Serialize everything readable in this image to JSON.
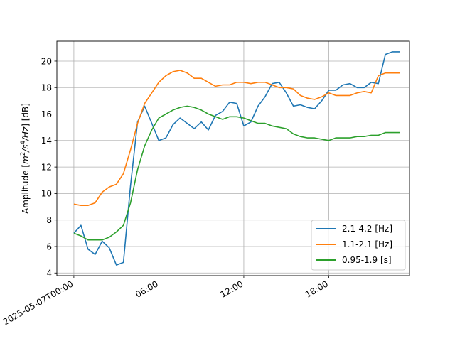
{
  "chart_data": {
    "type": "line",
    "title": "",
    "xlabel": "",
    "ylabel": "Amplitude [m²s⁴/Hz] [dB]",
    "ylabel_parts": {
      "prefix": "Amplitude [",
      "m": "m",
      "sq": "2",
      "s": "/s",
      "four": "4",
      "hz": "/Hz",
      "suffix": "] [dB]"
    },
    "x_unit": "hours since 2025-05-07T00:00",
    "xlim": [
      -1.2,
      23.7
    ],
    "ylim": [
      3.8,
      21.5
    ],
    "x_ticks": [
      {
        "value": 0,
        "label": "2025-05-07T00:00"
      },
      {
        "value": 6,
        "label": "06:00"
      },
      {
        "value": 12,
        "label": "12:00"
      },
      {
        "value": 18,
        "label": "18:00"
      }
    ],
    "y_ticks": [
      4,
      6,
      8,
      10,
      12,
      14,
      16,
      18,
      20
    ],
    "grid": true,
    "legend_position": "lower-right",
    "x": [
      0,
      0.5,
      1,
      1.5,
      2,
      2.5,
      3,
      3.5,
      4,
      4.5,
      5,
      5.5,
      6,
      6.5,
      7,
      7.5,
      8,
      8.5,
      9,
      9.5,
      10,
      10.5,
      11,
      11.5,
      12,
      12.5,
      13,
      13.5,
      14,
      14.5,
      15,
      15.5,
      16,
      16.5,
      17,
      17.5,
      18,
      18.5,
      19,
      19.5,
      20,
      20.5,
      21,
      21.5,
      22,
      22.5,
      23
    ],
    "series": [
      {
        "name": "2.1-4.2 [Hz]",
        "color": "#1f77b4",
        "values": [
          7.0,
          7.6,
          5.8,
          5.4,
          6.4,
          5.9,
          4.6,
          4.8,
          10.6,
          15.4,
          16.6,
          15.3,
          14.0,
          14.2,
          15.2,
          15.7,
          15.3,
          14.9,
          15.4,
          14.8,
          15.9,
          16.2,
          16.9,
          16.8,
          15.1,
          15.4,
          16.6,
          17.3,
          18.3,
          18.4,
          17.6,
          16.6,
          16.7,
          16.5,
          16.4,
          17.0,
          17.8,
          17.8,
          18.2,
          18.3,
          18.0,
          18.0,
          18.4,
          18.3,
          20.5,
          20.7,
          20.7
        ]
      },
      {
        "name": "1.1-2.1 [Hz]",
        "color": "#ff7f0e",
        "values": [
          9.2,
          9.1,
          9.1,
          9.3,
          10.1,
          10.5,
          10.7,
          11.5,
          13.3,
          15.3,
          16.8,
          17.6,
          18.4,
          18.9,
          19.2,
          19.3,
          19.1,
          18.7,
          18.7,
          18.4,
          18.1,
          18.2,
          18.2,
          18.4,
          18.4,
          18.3,
          18.4,
          18.4,
          18.2,
          18.0,
          18.0,
          17.9,
          17.4,
          17.2,
          17.1,
          17.3,
          17.6,
          17.4,
          17.4,
          17.4,
          17.6,
          17.7,
          17.6,
          18.9,
          19.1,
          19.1,
          19.1
        ]
      },
      {
        "name": "0.95-1.9 [s]",
        "color": "#2ca02c",
        "values": [
          7.0,
          6.8,
          6.5,
          6.5,
          6.5,
          6.7,
          7.1,
          7.6,
          9.3,
          11.8,
          13.6,
          14.8,
          15.7,
          16.0,
          16.3,
          16.5,
          16.6,
          16.5,
          16.3,
          16.0,
          15.8,
          15.6,
          15.8,
          15.8,
          15.7,
          15.5,
          15.3,
          15.3,
          15.1,
          15.0,
          14.9,
          14.5,
          14.3,
          14.2,
          14.2,
          14.1,
          14.0,
          14.2,
          14.2,
          14.2,
          14.3,
          14.3,
          14.4,
          14.4,
          14.6,
          14.6,
          14.6
        ]
      }
    ]
  }
}
